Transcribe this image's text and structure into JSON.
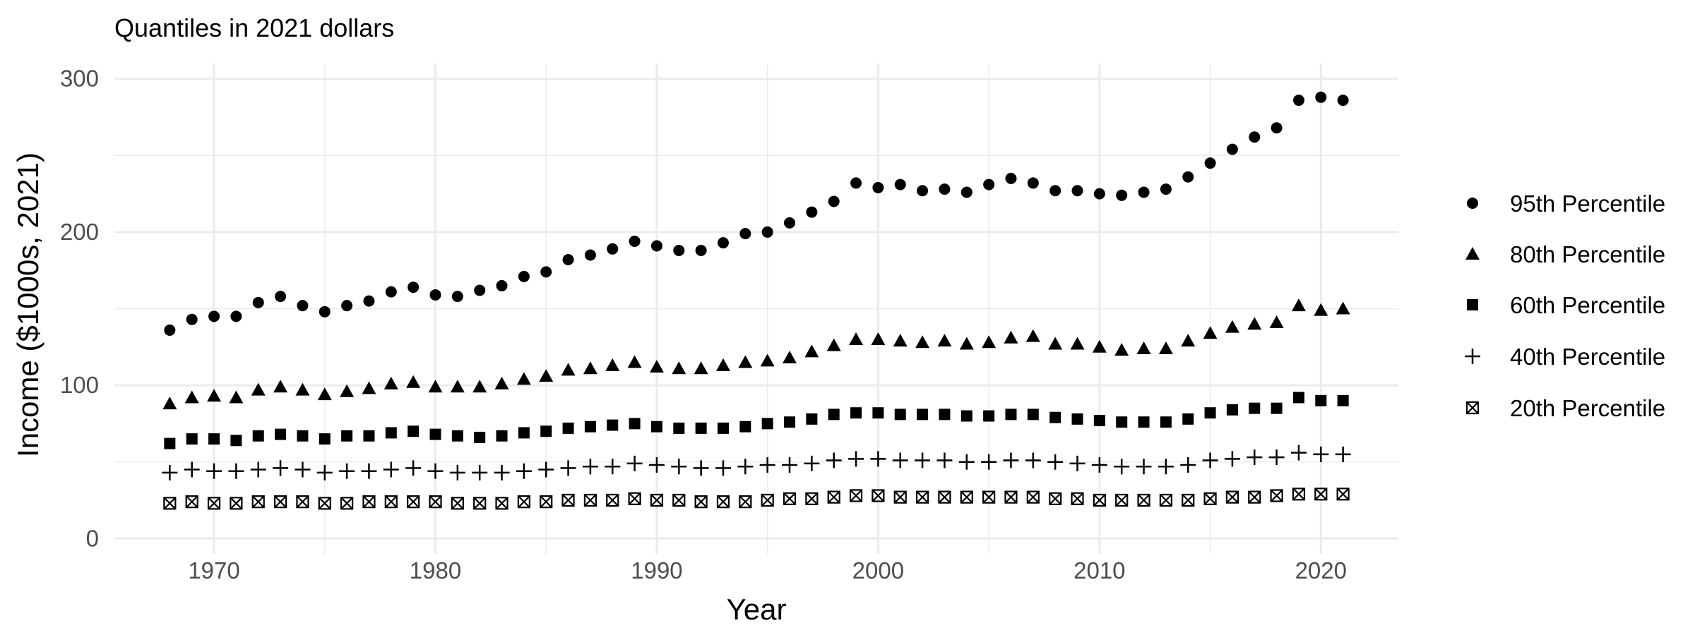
{
  "chart_data": {
    "type": "scatter",
    "title": "Quantiles in 2021 dollars",
    "xlabel": "Year",
    "ylabel": "Income ($1000s, 2021)",
    "xlim": [
      1965.5,
      2023.5
    ],
    "ylim": [
      -10,
      310
    ],
    "x_ticks": [
      1970,
      1980,
      1990,
      2000,
      2010,
      2020
    ],
    "y_ticks": [
      0,
      100,
      200,
      300
    ],
    "grid": true,
    "legend_position": "right",
    "x": [
      1968,
      1969,
      1970,
      1971,
      1972,
      1973,
      1974,
      1975,
      1976,
      1977,
      1978,
      1979,
      1980,
      1981,
      1982,
      1983,
      1984,
      1985,
      1986,
      1987,
      1988,
      1989,
      1990,
      1991,
      1992,
      1993,
      1994,
      1995,
      1996,
      1997,
      1998,
      1999,
      2000,
      2001,
      2002,
      2003,
      2004,
      2005,
      2006,
      2007,
      2008,
      2009,
      2010,
      2011,
      2012,
      2013,
      2014,
      2015,
      2016,
      2017,
      2018,
      2019,
      2020,
      2021
    ],
    "series": [
      {
        "name": "95th Percentile",
        "marker": "circle",
        "values": [
          136,
          143,
          145,
          145,
          154,
          158,
          152,
          148,
          152,
          155,
          161,
          164,
          159,
          158,
          162,
          165,
          171,
          174,
          182,
          185,
          189,
          194,
          191,
          188,
          188,
          193,
          199,
          200,
          206,
          213,
          220,
          232,
          229,
          231,
          227,
          228,
          226,
          231,
          235,
          232,
          227,
          227,
          225,
          224,
          226,
          228,
          236,
          245,
          254,
          262,
          268,
          286,
          288,
          286
        ]
      },
      {
        "name": "80th Percentile",
        "marker": "triangle",
        "values": [
          88,
          92,
          93,
          92,
          97,
          99,
          97,
          94,
          96,
          98,
          101,
          102,
          99,
          99,
          99,
          101,
          104,
          106,
          110,
          111,
          113,
          115,
          112,
          111,
          111,
          113,
          115,
          116,
          118,
          122,
          126,
          130,
          130,
          129,
          128,
          129,
          127,
          128,
          131,
          132,
          127,
          127,
          125,
          123,
          124,
          124,
          129,
          134,
          138,
          140,
          141,
          152,
          149,
          150
        ]
      },
      {
        "name": "60th Percentile",
        "marker": "square",
        "values": [
          62,
          65,
          65,
          64,
          67,
          68,
          67,
          65,
          67,
          67,
          69,
          70,
          68,
          67,
          66,
          67,
          69,
          70,
          72,
          73,
          74,
          75,
          73,
          72,
          72,
          72,
          73,
          75,
          76,
          78,
          81,
          82,
          82,
          81,
          81,
          81,
          80,
          80,
          81,
          81,
          79,
          78,
          77,
          76,
          76,
          76,
          78,
          82,
          84,
          85,
          85,
          92,
          90,
          90
        ]
      },
      {
        "name": "40th Percentile",
        "marker": "plus",
        "values": [
          43,
          45,
          44,
          44,
          45,
          46,
          45,
          43,
          44,
          44,
          45,
          46,
          44,
          43,
          43,
          43,
          44,
          45,
          46,
          47,
          47,
          49,
          48,
          47,
          46,
          46,
          47,
          48,
          48,
          49,
          51,
          52,
          52,
          51,
          51,
          51,
          50,
          50,
          51,
          51,
          50,
          49,
          48,
          47,
          47,
          47,
          48,
          51,
          52,
          53,
          53,
          56,
          55,
          55
        ]
      },
      {
        "name": "20th Percentile",
        "marker": "boxcross",
        "values": [
          23,
          24,
          23,
          23,
          24,
          24,
          24,
          23,
          23,
          24,
          24,
          24,
          24,
          23,
          23,
          23,
          24,
          24,
          25,
          25,
          25,
          26,
          25,
          25,
          24,
          24,
          24,
          25,
          26,
          26,
          27,
          28,
          28,
          27,
          27,
          27,
          27,
          27,
          27,
          27,
          26,
          26,
          25,
          25,
          25,
          25,
          25,
          26,
          27,
          27,
          28,
          29,
          29,
          29
        ]
      }
    ]
  }
}
